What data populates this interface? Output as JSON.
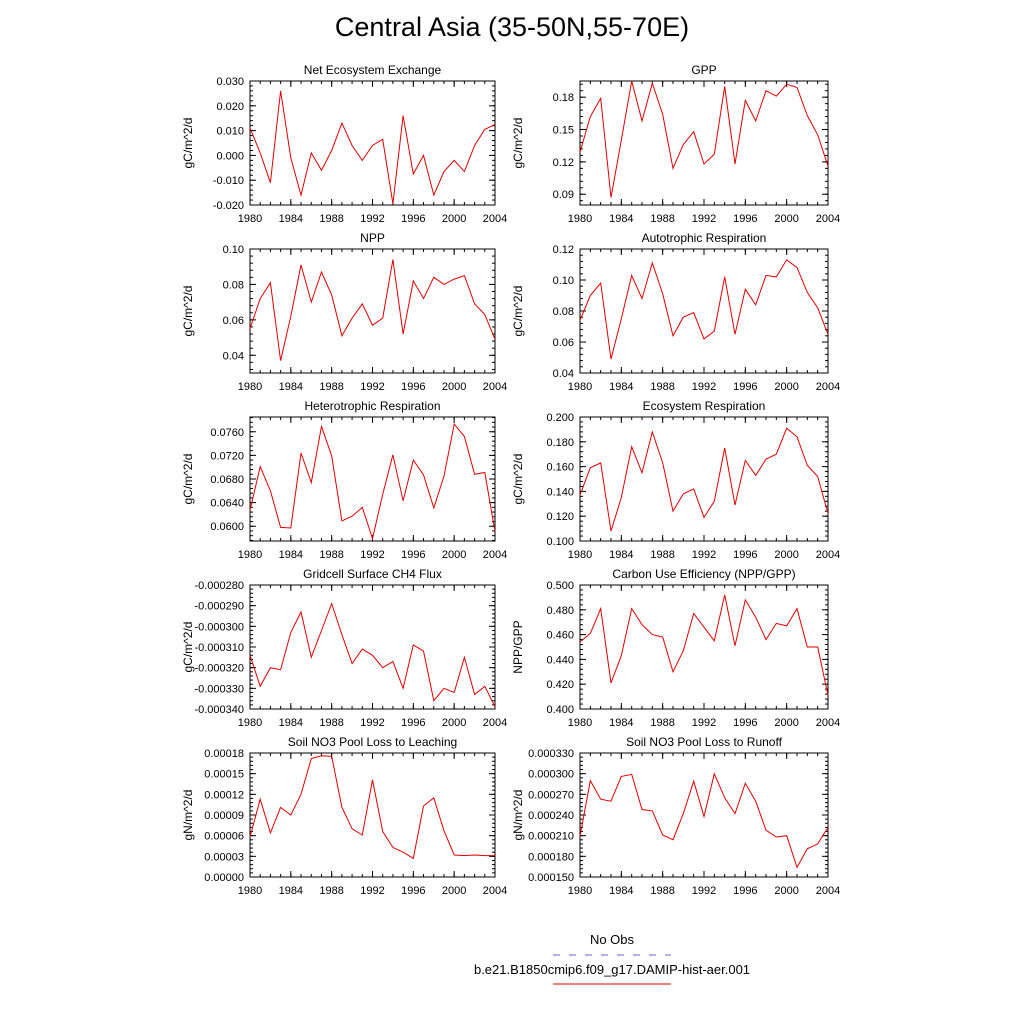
{
  "title": "Central Asia (35-50N,55-70E)",
  "legend": {
    "obs_label": "No Obs",
    "obs_color": "#6a6ad6",
    "model_label": "b.e21.B1850cmip6.f09_g17.DAMIP-hist-aer.001",
    "model_color": "#e00000"
  },
  "line_color": "#e00000",
  "chart_data": [
    {
      "type": "line",
      "title": "Net Ecosystem Exchange",
      "ylabel": "gC/m^2/d",
      "ylim": [
        -0.02,
        0.03
      ],
      "yticks": [
        "-0.020",
        "-0.010",
        "0.000",
        "0.010",
        "0.020",
        "0.030"
      ],
      "xticks": [
        "1980",
        "1984",
        "1988",
        "1992",
        "1996",
        "2000",
        "2004"
      ],
      "x": [
        1980,
        1981,
        1982,
        1983,
        1984,
        1985,
        1986,
        1987,
        1988,
        1989,
        1990,
        1991,
        1992,
        1993,
        1994,
        1995,
        1996,
        1997,
        1998,
        1999,
        2000,
        2001,
        2002,
        2003,
        2004
      ],
      "values": [
        0.011,
        0.001,
        -0.011,
        0.026,
        -0.001,
        -0.016,
        0.001,
        -0.006,
        0.002,
        0.013,
        0.004,
        -0.002,
        0.004,
        0.0065,
        -0.0195,
        0.016,
        -0.0075,
        0.0,
        -0.016,
        -0.0065,
        -0.002,
        -0.0065,
        0.004,
        0.0105,
        0.0125
      ]
    },
    {
      "type": "line",
      "title": "GPP",
      "ylabel": "gC/m^2/d",
      "ylim": [
        0.08,
        0.195
      ],
      "yticks": [
        "0.09",
        "0.12",
        "0.15",
        "0.18"
      ],
      "xticks": [
        "1980",
        "1984",
        "1988",
        "1992",
        "1996",
        "2000",
        "2004"
      ],
      "x": [
        1980,
        1981,
        1982,
        1983,
        1984,
        1985,
        1986,
        1987,
        1988,
        1989,
        1990,
        1991,
        1992,
        1993,
        1994,
        1995,
        1996,
        1997,
        1998,
        1999,
        2000,
        2001,
        2002,
        2003,
        2004
      ],
      "values": [
        0.129,
        0.162,
        0.179,
        0.087,
        0.14,
        0.195,
        0.158,
        0.193,
        0.164,
        0.114,
        0.136,
        0.148,
        0.118,
        0.127,
        0.19,
        0.118,
        0.177,
        0.158,
        0.186,
        0.181,
        0.192,
        0.189,
        0.163,
        0.145,
        0.116
      ]
    },
    {
      "type": "line",
      "title": "NPP",
      "ylabel": "gC/m^2/d",
      "ylim": [
        0.03,
        0.1
      ],
      "yticks": [
        "0.04",
        "0.06",
        "0.08",
        "0.10"
      ],
      "xticks": [
        "1980",
        "1984",
        "1988",
        "1992",
        "1996",
        "2000",
        "2004"
      ],
      "x": [
        1980,
        1981,
        1982,
        1983,
        1984,
        1985,
        1986,
        1987,
        1988,
        1989,
        1990,
        1991,
        1992,
        1993,
        1994,
        1995,
        1996,
        1997,
        1998,
        1999,
        2000,
        2001,
        2002,
        2003,
        2004
      ],
      "values": [
        0.055,
        0.072,
        0.081,
        0.037,
        0.062,
        0.091,
        0.07,
        0.087,
        0.074,
        0.051,
        0.061,
        0.069,
        0.057,
        0.061,
        0.094,
        0.052,
        0.082,
        0.072,
        0.084,
        0.08,
        0.083,
        0.085,
        0.069,
        0.063,
        0.049
      ]
    },
    {
      "type": "line",
      "title": "Autotrophic Respiration",
      "ylabel": "gC/m^2/d",
      "ylim": [
        0.04,
        0.12
      ],
      "yticks": [
        "0.04",
        "0.06",
        "0.08",
        "0.10",
        "0.12"
      ],
      "xticks": [
        "1980",
        "1984",
        "1988",
        "1992",
        "1996",
        "2000",
        "2004"
      ],
      "x": [
        1980,
        1981,
        1982,
        1983,
        1984,
        1985,
        1986,
        1987,
        1988,
        1989,
        1990,
        1991,
        1992,
        1993,
        1994,
        1995,
        1996,
        1997,
        1998,
        1999,
        2000,
        2001,
        2002,
        2003,
        2004
      ],
      "values": [
        0.074,
        0.09,
        0.098,
        0.049,
        0.075,
        0.103,
        0.088,
        0.111,
        0.091,
        0.064,
        0.076,
        0.079,
        0.062,
        0.067,
        0.102,
        0.065,
        0.094,
        0.084,
        0.103,
        0.102,
        0.113,
        0.108,
        0.092,
        0.082,
        0.065
      ]
    },
    {
      "type": "line",
      "title": "Heterotrophic Respiration",
      "ylabel": "gC/m^2/d",
      "ylim": [
        0.0575,
        0.0785
      ],
      "yticks": [
        "0.0600",
        "0.0640",
        "0.0680",
        "0.0720",
        "0.0760"
      ],
      "xticks": [
        "1980",
        "1984",
        "1988",
        "1992",
        "1996",
        "2000",
        "2004"
      ],
      "x": [
        1980,
        1981,
        1982,
        1983,
        1984,
        1985,
        1986,
        1987,
        1988,
        1989,
        1990,
        1991,
        1992,
        1993,
        1994,
        1995,
        1996,
        1997,
        1998,
        1999,
        2000,
        2001,
        2002,
        2003,
        2004
      ],
      "values": [
        0.0627,
        0.0701,
        0.066,
        0.0598,
        0.0597,
        0.0724,
        0.0674,
        0.0769,
        0.0719,
        0.0609,
        0.0617,
        0.0632,
        0.0579,
        0.0654,
        0.0721,
        0.0643,
        0.0712,
        0.0687,
        0.0631,
        0.0685,
        0.0773,
        0.0752,
        0.0688,
        0.0691,
        0.0591
      ]
    },
    {
      "type": "line",
      "title": "Ecosystem Respiration",
      "ylabel": "gC/m^2/d",
      "ylim": [
        0.1,
        0.2
      ],
      "yticks": [
        "0.100",
        "0.120",
        "0.140",
        "0.160",
        "0.180",
        "0.200"
      ],
      "xticks": [
        "1980",
        "1984",
        "1988",
        "1992",
        "1996",
        "2000",
        "2004"
      ],
      "x": [
        1980,
        1981,
        1982,
        1983,
        1984,
        1985,
        1986,
        1987,
        1988,
        1989,
        1990,
        1991,
        1992,
        1993,
        1994,
        1995,
        1996,
        1997,
        1998,
        1999,
        2000,
        2001,
        2002,
        2003,
        2004
      ],
      "values": [
        0.137,
        0.159,
        0.163,
        0.108,
        0.135,
        0.176,
        0.155,
        0.188,
        0.163,
        0.124,
        0.138,
        0.142,
        0.119,
        0.132,
        0.175,
        0.129,
        0.165,
        0.153,
        0.166,
        0.17,
        0.191,
        0.184,
        0.161,
        0.152,
        0.122
      ]
    },
    {
      "type": "line",
      "title": "Gridcell Surface CH4 Flux",
      "ylabel": "gC/m^2/d",
      "ylim": [
        -0.00034,
        -0.00028
      ],
      "yticks": [
        "-0.000340",
        "-0.000330",
        "-0.000320",
        "-0.000310",
        "-0.000300",
        "-0.000290",
        "-0.000280"
      ],
      "xticks": [
        "1980",
        "1984",
        "1988",
        "1992",
        "1996",
        "2000",
        "2004"
      ],
      "x": [
        1980,
        1981,
        1982,
        1983,
        1984,
        1985,
        1986,
        1987,
        1988,
        1989,
        1990,
        1991,
        1992,
        1993,
        1994,
        1995,
        1996,
        1997,
        1998,
        1999,
        2000,
        2001,
        2002,
        2003,
        2004
      ],
      "values": [
        -0.000314,
        -0.000329,
        -0.00032,
        -0.000321,
        -0.000303,
        -0.000293,
        -0.000315,
        -0.000302,
        -0.000289,
        -0.000304,
        -0.000318,
        -0.000311,
        -0.000314,
        -0.00032,
        -0.000317,
        -0.00033,
        -0.000309,
        -0.000312,
        -0.000336,
        -0.00033,
        -0.000332,
        -0.000315,
        -0.000333,
        -0.000329,
        -0.000339
      ]
    },
    {
      "type": "line",
      "title": "Carbon Use Efficiency (NPP/GPP)",
      "ylabel": "NPP/GPP",
      "ylim": [
        0.4,
        0.5
      ],
      "yticks": [
        "0.400",
        "0.420",
        "0.440",
        "0.460",
        "0.480",
        "0.500"
      ],
      "xticks": [
        "1980",
        "1984",
        "1988",
        "1992",
        "1996",
        "2000",
        "2004"
      ],
      "x": [
        1980,
        1981,
        1982,
        1983,
        1984,
        1985,
        1986,
        1987,
        1988,
        1989,
        1990,
        1991,
        1992,
        1993,
        1994,
        1995,
        1996,
        1997,
        1998,
        1999,
        2000,
        2001,
        2002,
        2003,
        2004
      ],
      "values": [
        0.454,
        0.461,
        0.481,
        0.421,
        0.443,
        0.481,
        0.468,
        0.46,
        0.458,
        0.43,
        0.447,
        0.477,
        0.466,
        0.455,
        0.492,
        0.451,
        0.488,
        0.474,
        0.456,
        0.469,
        0.467,
        0.481,
        0.45,
        0.45,
        0.411
      ]
    },
    {
      "type": "line",
      "title": "Soil NO3 Pool Loss to Leaching",
      "ylabel": "gN/m^2/d",
      "ylim": [
        0.0,
        0.00018
      ],
      "yticks": [
        "0.00000",
        "0.00003",
        "0.00006",
        "0.00009",
        "0.00012",
        "0.00015",
        "0.00018"
      ],
      "xticks": [
        "1980",
        "1984",
        "1988",
        "1992",
        "1996",
        "2000",
        "2004"
      ],
      "x": [
        1980,
        1981,
        1982,
        1983,
        1984,
        1985,
        1986,
        1987,
        1988,
        1989,
        1990,
        1991,
        1992,
        1993,
        1994,
        1995,
        1996,
        1997,
        1998,
        1999,
        2000,
        2001,
        2002,
        2003,
        2004
      ],
      "values": [
        5.8e-05,
        0.000113,
        6.4e-05,
        0.000101,
        9e-05,
        0.00012,
        0.000172,
        0.000176,
        0.000175,
        0.000101,
        7e-05,
        6.1e-05,
        0.000141,
        6.6e-05,
        4.3e-05,
        3.6e-05,
        2.7e-05,
        0.000103,
        0.000115,
        6.7e-05,
        3.2e-05,
        3.1e-05,
        3.2e-05,
        3.1e-05,
        3.1e-05
      ]
    },
    {
      "type": "line",
      "title": "Soil NO3 Pool Loss to Runoff",
      "ylabel": "gN/m^2/d",
      "ylim": [
        0.00015,
        0.00033
      ],
      "yticks": [
        "0.000150",
        "0.000180",
        "0.000210",
        "0.000240",
        "0.000270",
        "0.000300",
        "0.000330"
      ],
      "xticks": [
        "1980",
        "1984",
        "1988",
        "1992",
        "1996",
        "2000",
        "2004"
      ],
      "x": [
        1980,
        1981,
        1982,
        1983,
        1984,
        1985,
        1986,
        1987,
        1988,
        1989,
        1990,
        1991,
        1992,
        1993,
        1994,
        1995,
        1996,
        1997,
        1998,
        1999,
        2000,
        2001,
        2002,
        2003,
        2004
      ],
      "values": [
        0.000209,
        0.00029,
        0.000263,
        0.00026,
        0.000296,
        0.000299,
        0.000248,
        0.000246,
        0.000211,
        0.000204,
        0.000242,
        0.000289,
        0.000238,
        0.0003,
        0.000265,
        0.000242,
        0.000286,
        0.00026,
        0.000218,
        0.000208,
        0.00021,
        0.000164,
        0.000191,
        0.000198,
        0.000222
      ]
    }
  ]
}
